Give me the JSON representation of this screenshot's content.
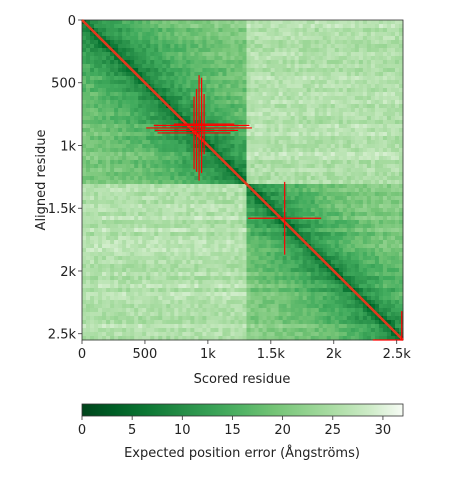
{
  "chart_data": {
    "type": "heatmap",
    "title": "",
    "xlabel": "Scored residue",
    "ylabel": "Aligned residue",
    "x_range": [
      0,
      2550
    ],
    "y_range": [
      0,
      2550
    ],
    "x_ticks": [
      "0",
      "500",
      "1k",
      "1.5k",
      "2k",
      "2.5k"
    ],
    "x_tick_values": [
      0,
      500,
      1000,
      1500,
      2000,
      2500
    ],
    "y_ticks": [
      "0",
      "500",
      "1k",
      "1.5k",
      "2k",
      "2.5k"
    ],
    "y_tick_values": [
      0,
      500,
      1000,
      1500,
      2000,
      2500
    ],
    "y_axis_inverted": true,
    "colorbar": {
      "label": "Expected position error (Ångströms)",
      "min": 0,
      "max": 32,
      "ticks": [
        "0",
        "5",
        "10",
        "15",
        "20",
        "25",
        "30"
      ],
      "tick_values": [
        0,
        5,
        10,
        15,
        20,
        25,
        30
      ],
      "colormap": "Greens (reversed)",
      "low_color": "#00441b",
      "high_color": "#f7fcf5"
    },
    "domains": [
      {
        "start": 0,
        "end": 1320,
        "within_domain_error": 8
      },
      {
        "start": 1320,
        "end": 2550,
        "within_domain_error": 9
      }
    ],
    "diagonal_line": {
      "from": [
        0,
        0
      ],
      "to": [
        2550,
        2550
      ],
      "color": "#e03a1e"
    },
    "crosshair_markers": [
      {
        "x": 930,
        "y": 860,
        "arm": 420,
        "color": "#ff0000"
      },
      {
        "x": 910,
        "y": 880,
        "arm": 330,
        "color": "#ff0000"
      },
      {
        "x": 950,
        "y": 840,
        "arm": 380,
        "color": "#ff0000"
      },
      {
        "x": 890,
        "y": 900,
        "arm": 290,
        "color": "#ff0000"
      },
      {
        "x": 970,
        "y": 830,
        "arm": 240,
        "color": "#ff0000"
      },
      {
        "x": 1610,
        "y": 1580,
        "arm": 290,
        "color": "#ff0000"
      },
      {
        "x": 2540,
        "y": 2550,
        "arm": 230,
        "color": "#ff0000"
      }
    ]
  }
}
